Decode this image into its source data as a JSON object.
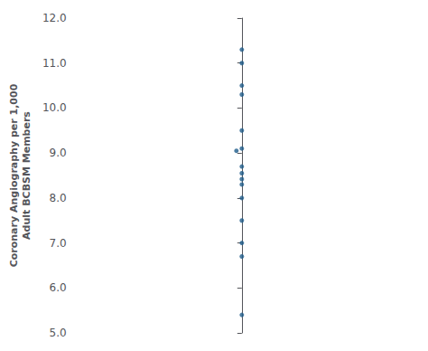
{
  "chart_data": {
    "type": "scatter",
    "ylabel": "Coronary Angiography per 1,000\nAdult BCBSM Members",
    "values": [
      11.3,
      11.0,
      10.5,
      10.3,
      9.5,
      8.7,
      8.55,
      8.42,
      8.3,
      8.0,
      7.5,
      7.0,
      6.7,
      5.4,
      9.1,
      9.05
    ],
    "color": "#1f5c8b",
    "ylim": [
      5.0,
      12.0
    ],
    "yticks": [
      {
        "value": 5.0,
        "label": "5.0"
      },
      {
        "value": 6.0,
        "label": "6.0"
      },
      {
        "value": 7.0,
        "label": "7.0"
      },
      {
        "value": 8.0,
        "label": "8.0"
      },
      {
        "value": 9.0,
        "label": "9.0"
      },
      {
        "value": 10.0,
        "label": "10.0"
      },
      {
        "value": 11.0,
        "label": "11.0"
      },
      {
        "value": 12.0,
        "label": "12.0"
      }
    ],
    "grid": false,
    "tick_labels": "y"
  }
}
